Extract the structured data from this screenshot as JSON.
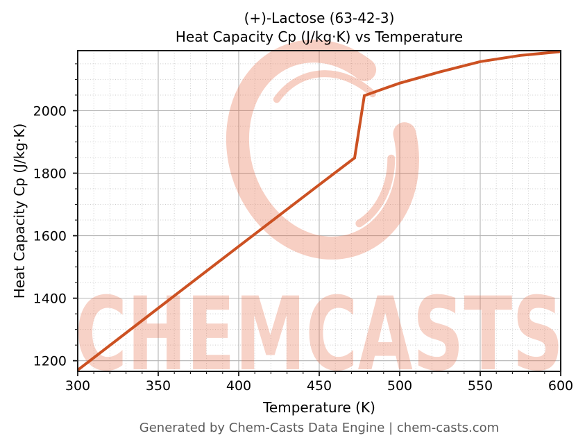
{
  "figure": {
    "title_line1": "(+)-Lactose (63-42-3)",
    "title_line2": "Heat Capacity Cp (J/kg·K) vs Temperature",
    "footer": "Generated by Chem-Casts Data Engine | chem-casts.com"
  },
  "watermark": {
    "text": "CHEMCASTS",
    "color": "#e66a45",
    "text_opacity": 0.3,
    "logo_opacity": 0.32
  },
  "colors": {
    "background": "#ffffff",
    "major_grid": "#b3b3b3",
    "minor_grid": "#cdcdcd",
    "spine": "#1a1a1a",
    "tick_label": "#000000",
    "footer_text": "#5c5c5c"
  },
  "chart_data": {
    "type": "line",
    "title": "(+)-Lactose (63-42-3)",
    "subtitle": "Heat Capacity Cp (J/kg·K) vs Temperature",
    "xlabel": "Temperature (K)",
    "ylabel": "Heat Capacity Cp (J/kg·K)",
    "xlim": [
      300,
      600
    ],
    "ylim": [
      1166,
      2192
    ],
    "x_major_ticks": [
      300,
      350,
      400,
      450,
      500,
      550,
      600
    ],
    "y_major_ticks": [
      1200,
      1400,
      1600,
      1800,
      2000
    ],
    "x_minor_step": 10,
    "y_minor_step": 50,
    "grid": {
      "major": "solid",
      "minor": "dotted"
    },
    "legend_position": "none",
    "series": [
      {
        "name": "Heat Capacity Cp (J/kg·K)",
        "color": "#cc5122",
        "line_width": 4,
        "points": [
          [
            300,
            1170
          ],
          [
            350,
            1368
          ],
          [
            400,
            1566
          ],
          [
            450,
            1763
          ],
          [
            472,
            1849
          ],
          [
            478,
            2048
          ],
          [
            490,
            2070
          ],
          [
            500,
            2088
          ],
          [
            525,
            2124
          ],
          [
            550,
            2157
          ],
          [
            575,
            2177
          ],
          [
            600,
            2189
          ]
        ]
      }
    ]
  }
}
